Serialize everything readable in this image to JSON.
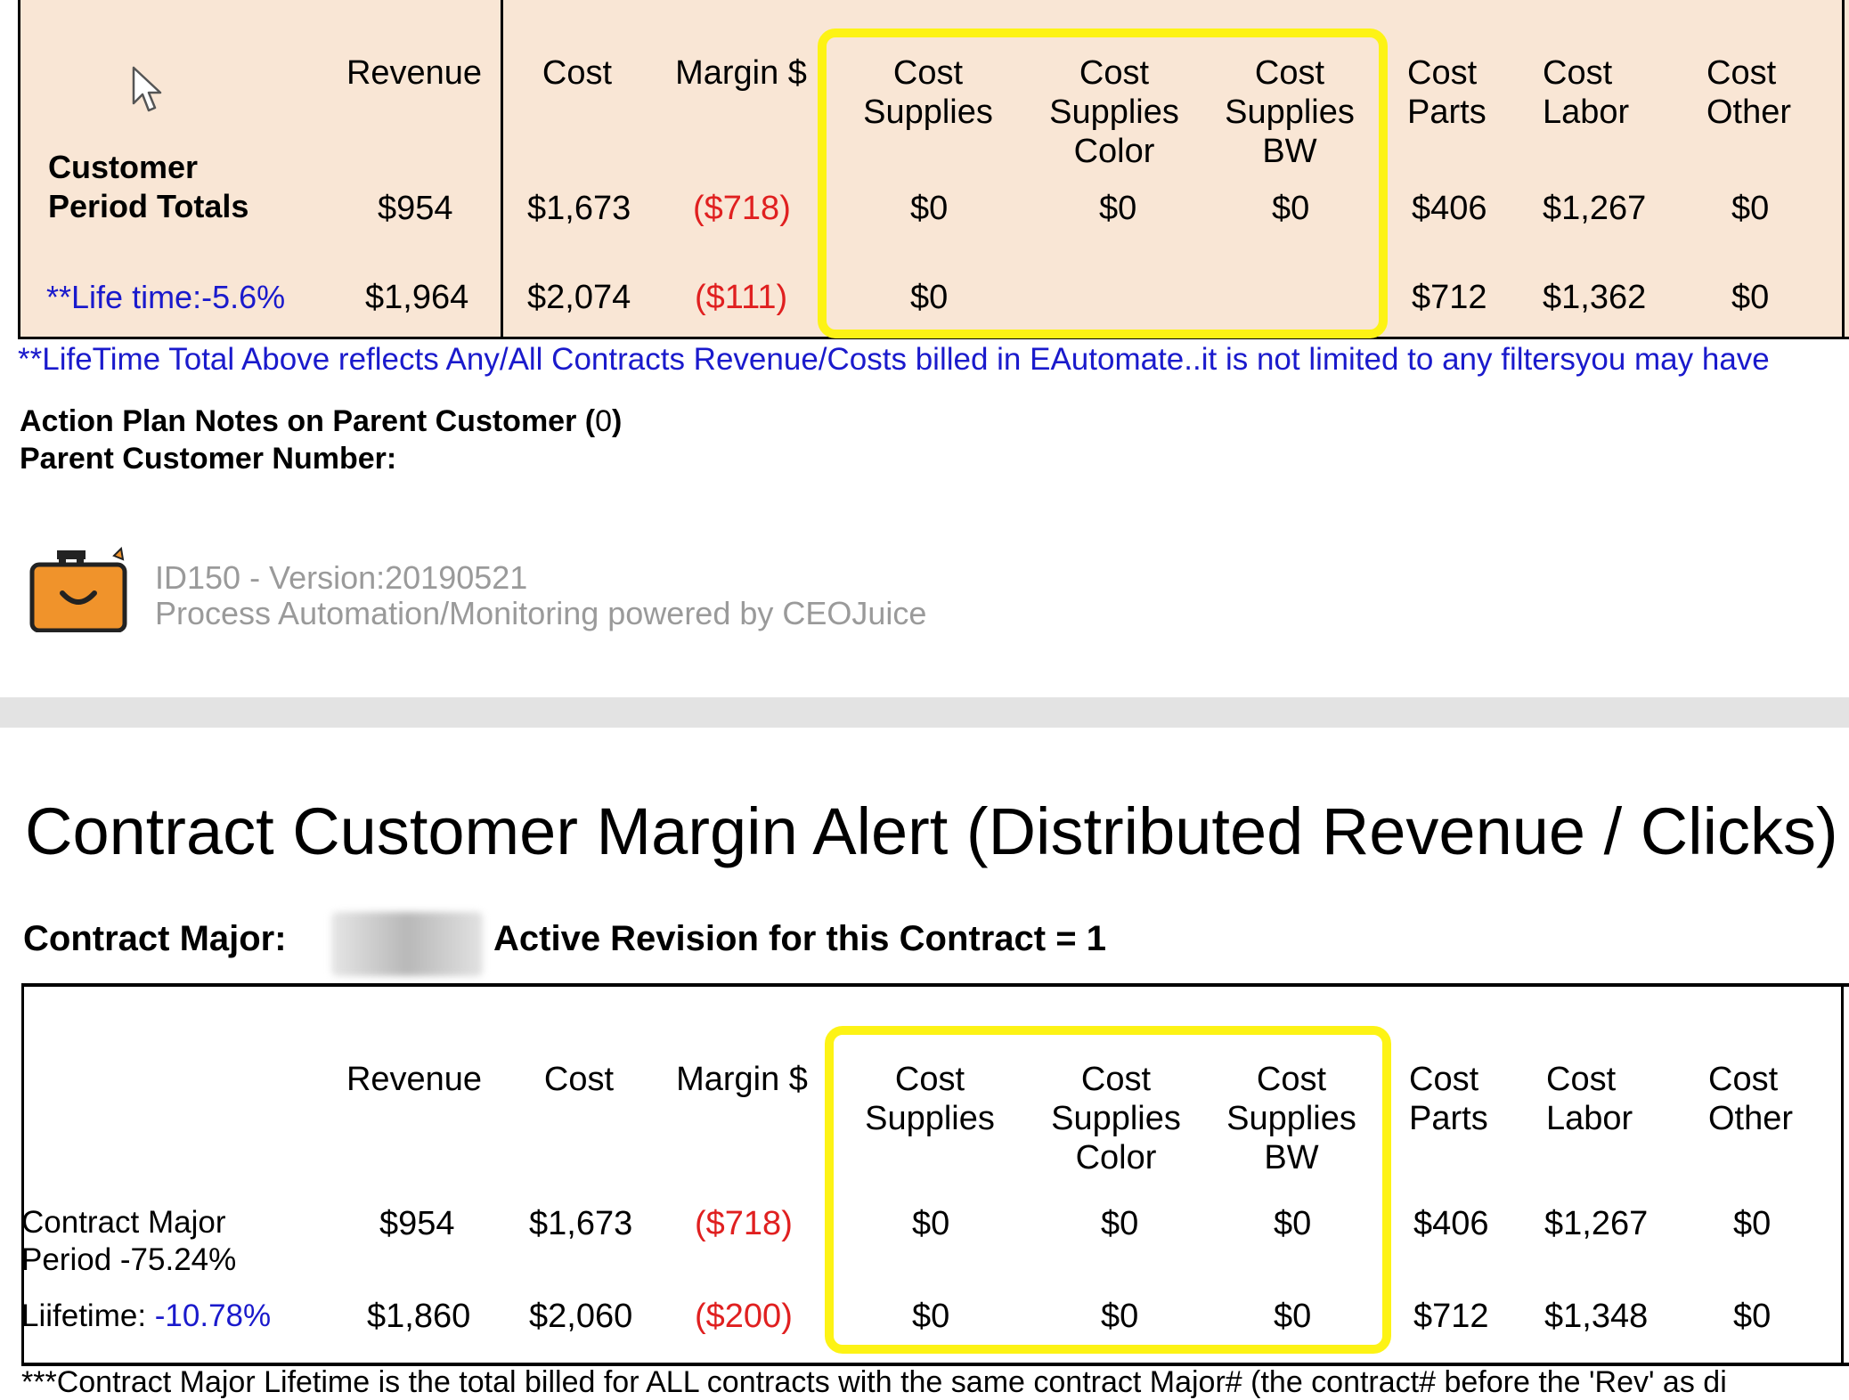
{
  "top_table": {
    "columns": {
      "revenue": "Revenue",
      "cost": "Cost",
      "margin": "Margin $",
      "cost_supplies": [
        "Cost",
        "Supplies"
      ],
      "cost_supplies_color": [
        "Cost",
        "Supplies",
        "Color"
      ],
      "cost_supplies_bw": [
        "Cost",
        "Supplies",
        "BW"
      ],
      "cost_parts": [
        "Cost",
        "Parts"
      ],
      "cost_labor": [
        "Cost",
        "Labor"
      ],
      "cost_other": [
        "Cost",
        "Other"
      ]
    },
    "period_label": [
      "Customer",
      "Period Totals"
    ],
    "period": {
      "revenue": "$954",
      "cost": "$1,673",
      "margin": "($718)",
      "cost_supplies": "$0",
      "cost_supplies_color": "$0",
      "cost_supplies_bw": "$0",
      "cost_parts": "$406",
      "cost_labor": "$1,267",
      "cost_other": "$0"
    },
    "lifetime_label": "**Life time:-5.6%",
    "lifetime": {
      "revenue": "$1,964",
      "cost": "$2,074",
      "margin": "($111)",
      "cost_supplies": "$0",
      "cost_parts": "$712",
      "cost_labor": "$1,362",
      "cost_other": "$0"
    }
  },
  "lifetime_note": "**LifeTime Total Above reflects Any/All Contracts Revenue/Costs billed in EAutomate..it is not limited to any filtersyou may have",
  "action_plan": {
    "label": "Action Plan Notes on Parent Customer (",
    "count": "0",
    "close": ")",
    "parent_number_label": "Parent Customer Number:"
  },
  "footer": {
    "version": "ID150 - Version:20190521",
    "powered_by": "Process Automation/Monitoring powered by CEOJuice"
  },
  "report_title": "Contract Customer Margin Alert (Distributed Revenue / Clicks) R",
  "contract": {
    "major_label": "Contract Major:",
    "revision_text": "Active Revision for this Contract = 1"
  },
  "bottom_table": {
    "columns": {
      "revenue": "Revenue",
      "cost": "Cost",
      "margin": "Margin $",
      "cost_supplies": [
        "Cost",
        "Supplies"
      ],
      "cost_supplies_color": [
        "Cost",
        "Supplies",
        "Color"
      ],
      "cost_supplies_bw": [
        "Cost",
        "Supplies",
        "BW"
      ],
      "cost_parts": [
        "Cost",
        "Parts"
      ],
      "cost_labor": [
        "Cost",
        "Labor"
      ],
      "cost_other": [
        "Cost",
        "Other"
      ]
    },
    "period_label": [
      "Contract Major",
      "Period -75.24%"
    ],
    "period": {
      "revenue": "$954",
      "cost": "$1,673",
      "margin": "($718)",
      "cost_supplies": "$0",
      "cost_supplies_color": "$0",
      "cost_supplies_bw": "$0",
      "cost_parts": "$406",
      "cost_labor": "$1,267",
      "cost_other": "$0"
    },
    "lifetime_label": "Liifetime: ",
    "lifetime_pct": "-10.78%",
    "lifetime": {
      "revenue": "$1,860",
      "cost": "$2,060",
      "margin": "($200)",
      "cost_supplies": "$0",
      "cost_supplies_color": "$0",
      "cost_supplies_bw": "$0",
      "cost_parts": "$712",
      "cost_labor": "$1,348",
      "cost_other": "$0"
    }
  },
  "bottom_note": "***Contract Major Lifetime is the total billed for ALL contracts with the same contract Major# (the contract# before the 'Rev' as di",
  "colors": {
    "table_bg": "#f9e6d5",
    "highlight": "#fdf315",
    "negative": "#e02020",
    "link_blue": "#1a1acc",
    "muted_gray": "#9a9a9a",
    "logo_orange": "#f0932b"
  },
  "icons": [
    "cursor-arrow-icon",
    "briefcase-logo-icon"
  ]
}
